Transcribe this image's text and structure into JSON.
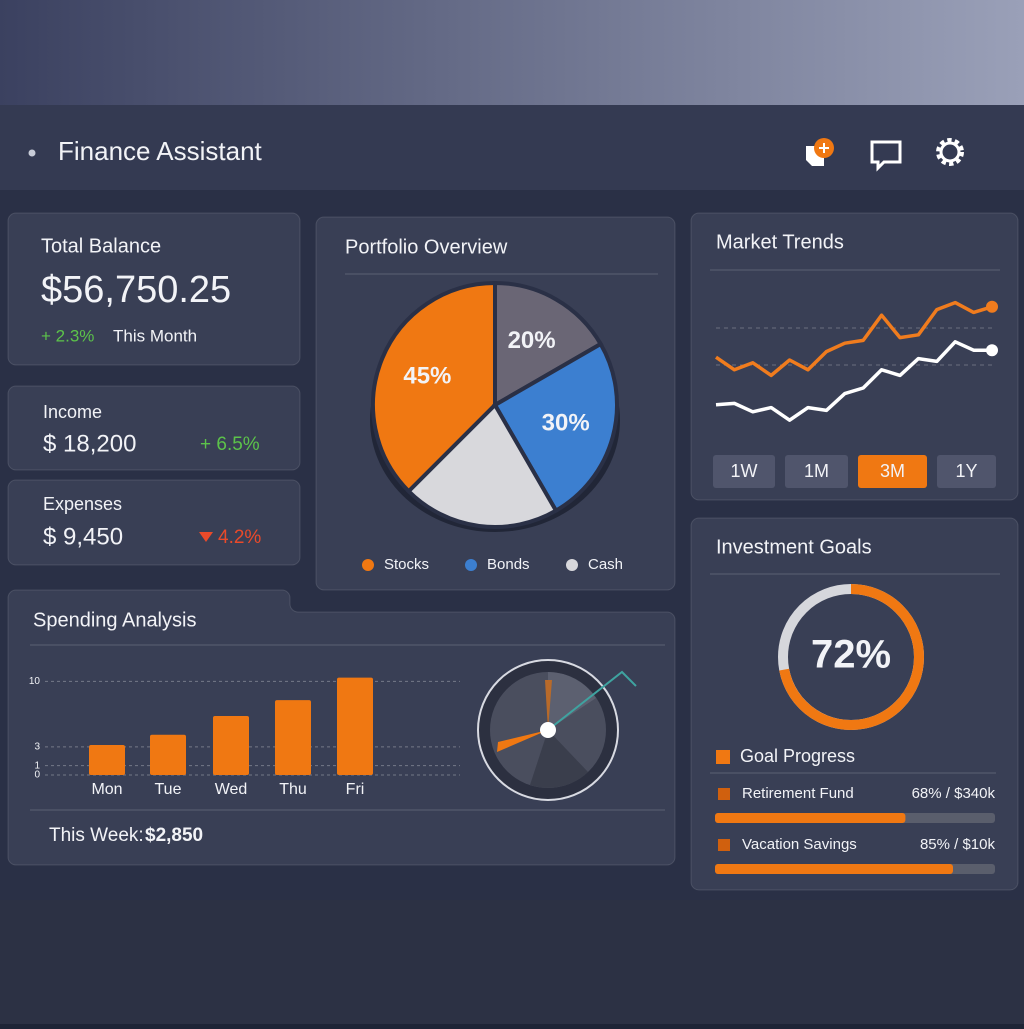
{
  "header": {
    "title": "Finance Assistant"
  },
  "balance": {
    "label": "Total Balance",
    "amount": "$56,750.25",
    "change": "+ 2.3%",
    "period": "This Month"
  },
  "income": {
    "label": "Income",
    "amount": "$ 18,200",
    "change": "+ 6.5%"
  },
  "expenses": {
    "label": "Expenses",
    "amount": "$ 9,450",
    "change": "4.2%"
  },
  "portfolio": {
    "type": "pie",
    "title": "Portfolio Overview",
    "categories": [
      "Stocks",
      null,
      "Bonds",
      "Cash"
    ],
    "values": [
      45,
      20,
      30,
      25
    ],
    "value_labels": [
      "45%",
      "20%",
      "30%",
      null
    ],
    "colors": [
      "#f07812",
      "#6a6675",
      "#3c7fd0",
      "#d8d8dc"
    ]
  },
  "market": {
    "type": "line",
    "title": "Market Trends",
    "ylim": [
      0,
      100
    ],
    "series": [
      {
        "color": "#f07c1e",
        "values": [
          52,
          43,
          48,
          39,
          50,
          43,
          56,
          62,
          64,
          82,
          66,
          68,
          86,
          91,
          84,
          88
        ]
      },
      {
        "color": "#ffffff",
        "values": [
          18,
          19,
          13,
          16,
          7,
          16,
          14,
          26,
          30,
          43,
          39,
          51,
          49,
          63,
          57,
          57
        ]
      }
    ],
    "ranges": [
      "1W",
      "1M",
      "3M",
      "1Y"
    ],
    "active_range": 2
  },
  "spending": {
    "type": "bar",
    "title": "Spending Analysis",
    "categories": [
      "Mon",
      "Tue",
      "Wed",
      "Thu",
      "Fri"
    ],
    "values": [
      3.2,
      4.3,
      6.3,
      8,
      10.4
    ],
    "color": "#f07812",
    "ylim": [
      0,
      11
    ],
    "yticks": [
      0,
      1,
      3,
      10
    ],
    "footer_label": "This Week:",
    "footer_value": "$2,850"
  },
  "goals": {
    "title": "Investment Goals",
    "progress": 72,
    "progress_label": "72%",
    "legend": "Goal Progress",
    "items": [
      {
        "name": "Retirement Fund",
        "label": "68% / $340k",
        "progress": 68
      },
      {
        "name": "Vacation Savings",
        "label": "85% / $10k",
        "progress": 85
      }
    ]
  }
}
